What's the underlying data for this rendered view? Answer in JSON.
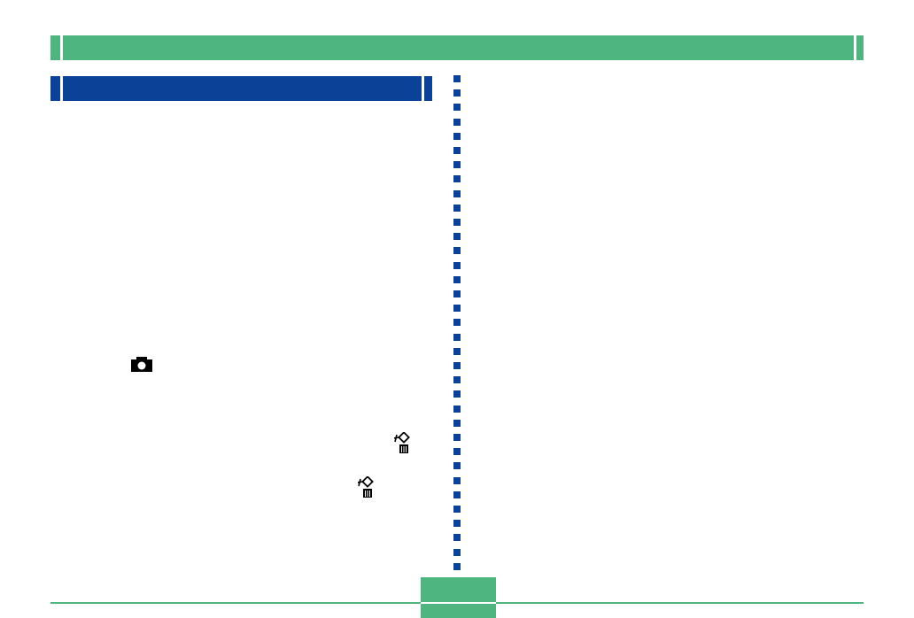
{
  "colors": {
    "header_green": "#4fb580",
    "section_blue": "#0c4198",
    "icon": "#000000"
  },
  "icons": [
    "camera-icon",
    "delete-icon",
    "delete-icon"
  ]
}
